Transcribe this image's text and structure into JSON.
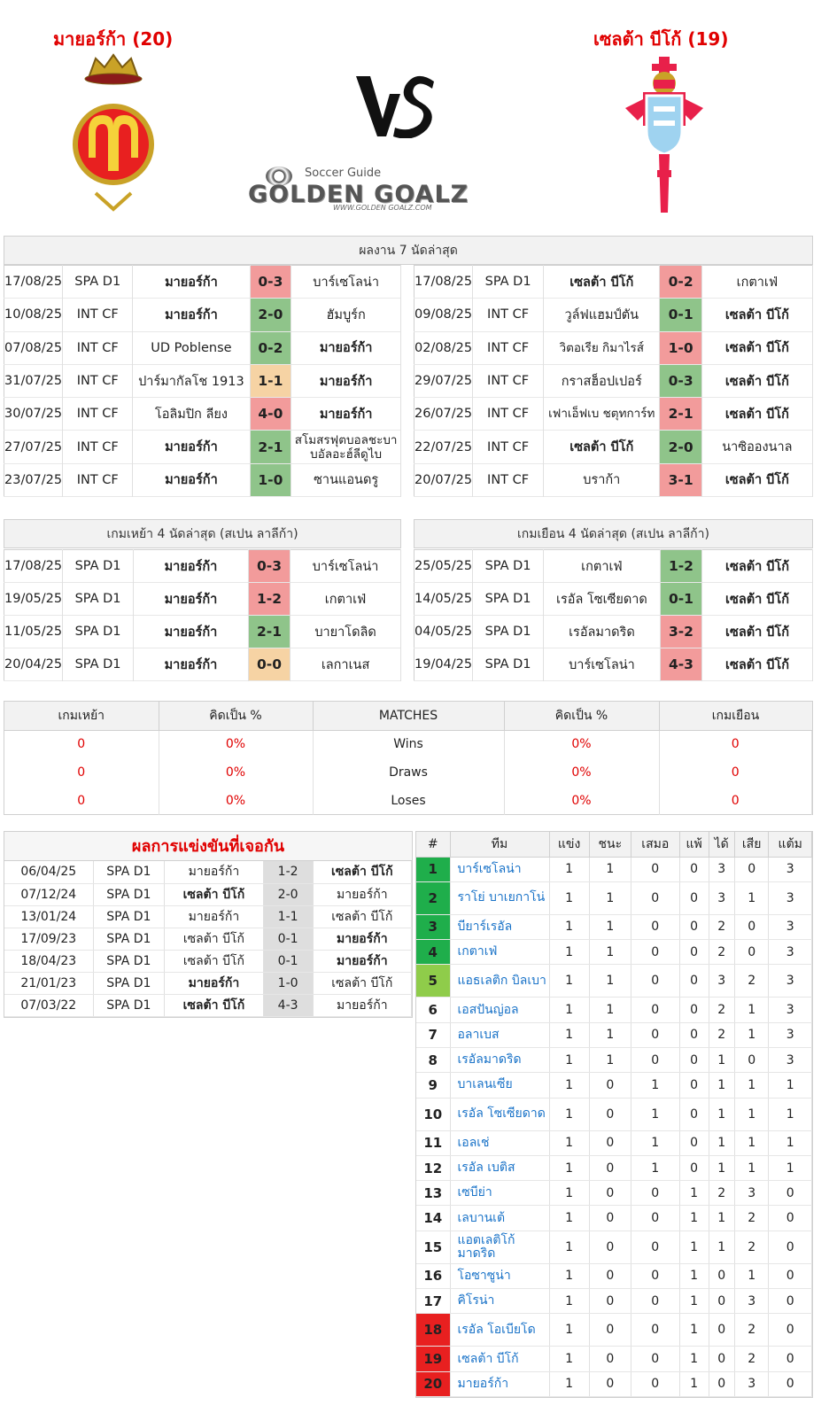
{
  "header": {
    "home_title": "มายอร์ก้า (20)",
    "away_title": "เซลต้า บีโก้ (19)",
    "vs": "VS",
    "brand_small": "Soccer Guide",
    "brand_big": "GOLDEN GOALZ",
    "brand_url": "WWW.GOLDEN GOALZ.COM"
  },
  "last7": {
    "title": "ผลงาน 7 นัดล่าสุด",
    "home": [
      {
        "date": "17/08/25",
        "comp": "SPA D1",
        "t1": "มายอร์ก้า",
        "score": "0-3",
        "t2": "บาร์เซโลน่า",
        "res": "L",
        "bold": 1
      },
      {
        "date": "10/08/25",
        "comp": "INT CF",
        "t1": "มายอร์ก้า",
        "score": "2-0",
        "t2": "ฮัมบูร์ก",
        "res": "W",
        "bold": 1
      },
      {
        "date": "07/08/25",
        "comp": "INT CF",
        "t1": "UD Poblense",
        "score": "0-2",
        "t2": "มายอร์ก้า",
        "res": "W",
        "bold": 2
      },
      {
        "date": "31/07/25",
        "comp": "INT CF",
        "t1": "ปาร์มากัลโช 1913",
        "score": "1-1",
        "t2": "มายอร์ก้า",
        "res": "D",
        "bold": 2
      },
      {
        "date": "30/07/25",
        "comp": "INT CF",
        "t1": "โอลิมปิก ลียง",
        "score": "4-0",
        "t2": "มายอร์ก้า",
        "res": "L",
        "bold": 2
      },
      {
        "date": "27/07/25",
        "comp": "INT CF",
        "t1": "มายอร์ก้า",
        "score": "2-1",
        "t2": "สโมสรฟุตบอลชะบาบอัลอะฮ์ลีดูไบ",
        "res": "W",
        "bold": 1
      },
      {
        "date": "23/07/25",
        "comp": "INT CF",
        "t1": "มายอร์ก้า",
        "score": "1-0",
        "t2": "ซานแอนดรู",
        "res": "W",
        "bold": 1
      }
    ],
    "away": [
      {
        "date": "17/08/25",
        "comp": "SPA D1",
        "t1": "เซลต้า บีโก้",
        "score": "0-2",
        "t2": "เกตาเฟ่",
        "res": "L",
        "bold": 1
      },
      {
        "date": "09/08/25",
        "comp": "INT CF",
        "t1": "วูล์ฟแฮมป์ตัน",
        "score": "0-1",
        "t2": "เซลต้า บีโก้",
        "res": "W",
        "bold": 2
      },
      {
        "date": "02/08/25",
        "comp": "INT CF",
        "t1": "วิตอเรีย กิมาไรส์",
        "score": "1-0",
        "t2": "เซลต้า บีโก้",
        "res": "L",
        "bold": 2
      },
      {
        "date": "29/07/25",
        "comp": "INT CF",
        "t1": "กราสฮ็อปเปอร์",
        "score": "0-3",
        "t2": "เซลต้า บีโก้",
        "res": "W",
        "bold": 2
      },
      {
        "date": "26/07/25",
        "comp": "INT CF",
        "t1": "เฟาเอ็ฟเบ ชตุทการ์ท",
        "score": "2-1",
        "t2": "เซลต้า บีโก้",
        "res": "L",
        "bold": 2
      },
      {
        "date": "22/07/25",
        "comp": "INT CF",
        "t1": "เซลต้า บีโก้",
        "score": "2-0",
        "t2": "นาซิอองนาล",
        "res": "W",
        "bold": 1
      },
      {
        "date": "20/07/25",
        "comp": "INT CF",
        "t1": "บราก้า",
        "score": "3-1",
        "t2": "เซลต้า บีโก้",
        "res": "L",
        "bold": 2
      }
    ]
  },
  "last4": {
    "home_title": "เกมเหย้า 4 นัดล่าสุด (สเปน ลาลีก้า)",
    "away_title": "เกมเยือน 4 นัดล่าสุด (สเปน ลาลีก้า)",
    "home": [
      {
        "date": "17/08/25",
        "comp": "SPA D1",
        "t1": "มายอร์ก้า",
        "score": "0-3",
        "t2": "บาร์เซโลน่า",
        "res": "L",
        "bold": 1
      },
      {
        "date": "19/05/25",
        "comp": "SPA D1",
        "t1": "มายอร์ก้า",
        "score": "1-2",
        "t2": "เกตาเฟ่",
        "res": "L",
        "bold": 1
      },
      {
        "date": "11/05/25",
        "comp": "SPA D1",
        "t1": "มายอร์ก้า",
        "score": "2-1",
        "t2": "บายาโดลิด",
        "res": "W",
        "bold": 1
      },
      {
        "date": "20/04/25",
        "comp": "SPA D1",
        "t1": "มายอร์ก้า",
        "score": "0-0",
        "t2": "เลกาเนส",
        "res": "D",
        "bold": 1
      }
    ],
    "away": [
      {
        "date": "25/05/25",
        "comp": "SPA D1",
        "t1": "เกตาเฟ่",
        "score": "1-2",
        "t2": "เซลต้า บีโก้",
        "res": "W",
        "bold": 2
      },
      {
        "date": "14/05/25",
        "comp": "SPA D1",
        "t1": "เรอัล โซเซียดาด",
        "score": "0-1",
        "t2": "เซลต้า บีโก้",
        "res": "W",
        "bold": 2
      },
      {
        "date": "04/05/25",
        "comp": "SPA D1",
        "t1": "เรอัลมาดริด",
        "score": "3-2",
        "t2": "เซลต้า บีโก้",
        "res": "L",
        "bold": 2
      },
      {
        "date": "19/04/25",
        "comp": "SPA D1",
        "t1": "บาร์เซโลน่า",
        "score": "4-3",
        "t2": "เซลต้า บีโก้",
        "res": "L",
        "bold": 2
      }
    ]
  },
  "summary": {
    "headers": [
      "เกมเหย้า",
      "คิดเป็น %",
      "MATCHES",
      "คิดเป็น %",
      "เกมเยือน"
    ],
    "rows": [
      {
        "h": "0",
        "hp": "0%",
        "label": "Wins",
        "ap": "0%",
        "a": "0"
      },
      {
        "h": "0",
        "hp": "0%",
        "label": "Draws",
        "ap": "0%",
        "a": "0"
      },
      {
        "h": "0",
        "hp": "0%",
        "label": "Loses",
        "ap": "0%",
        "a": "0"
      }
    ]
  },
  "h2h": {
    "title": "ผลการแข่งขันที่เจอกัน",
    "rows": [
      {
        "date": "06/04/25",
        "comp": "SPA D1",
        "t1": "มายอร์ก้า",
        "score": "1-2",
        "t2": "เซลต้า บีโก้",
        "bold": 2
      },
      {
        "date": "07/12/24",
        "comp": "SPA D1",
        "t1": "เซลต้า บีโก้",
        "score": "2-0",
        "t2": "มายอร์ก้า",
        "bold": 1
      },
      {
        "date": "13/01/24",
        "comp": "SPA D1",
        "t1": "มายอร์ก้า",
        "score": "1-1",
        "t2": "เซลต้า บีโก้",
        "bold": 0
      },
      {
        "date": "17/09/23",
        "comp": "SPA D1",
        "t1": "เซลต้า บีโก้",
        "score": "0-1",
        "t2": "มายอร์ก้า",
        "bold": 2
      },
      {
        "date": "18/04/23",
        "comp": "SPA D1",
        "t1": "เซลต้า บีโก้",
        "score": "0-1",
        "t2": "มายอร์ก้า",
        "bold": 2
      },
      {
        "date": "21/01/23",
        "comp": "SPA D1",
        "t1": "มายอร์ก้า",
        "score": "1-0",
        "t2": "เซลต้า บีโก้",
        "bold": 1
      },
      {
        "date": "07/03/22",
        "comp": "SPA D1",
        "t1": "เซลต้า บีโก้",
        "score": "4-3",
        "t2": "มายอร์ก้า",
        "bold": 1
      }
    ]
  },
  "standings": {
    "headers": [
      "#",
      "ทีม",
      "แข่ง",
      "ชนะ",
      "เสมอ",
      "แพ้",
      "ได้",
      "เสีย",
      "แต้ม"
    ],
    "rows": [
      {
        "rank": "1",
        "team": "บาร์เซโลน่า",
        "p": "1",
        "w": "1",
        "d": "0",
        "l": "0",
        "gf": "3",
        "ga": "0",
        "pts": "3",
        "zone": "g1"
      },
      {
        "rank": "2",
        "team": "ราโย่ บาเยกาโน่",
        "p": "1",
        "w": "1",
        "d": "0",
        "l": "0",
        "gf": "3",
        "ga": "1",
        "pts": "3",
        "zone": "g1"
      },
      {
        "rank": "3",
        "team": "บียาร์เรอัล",
        "p": "1",
        "w": "1",
        "d": "0",
        "l": "0",
        "gf": "2",
        "ga": "0",
        "pts": "3",
        "zone": "g1"
      },
      {
        "rank": "4",
        "team": "เกตาเฟ่",
        "p": "1",
        "w": "1",
        "d": "0",
        "l": "0",
        "gf": "2",
        "ga": "0",
        "pts": "3",
        "zone": "g1"
      },
      {
        "rank": "5",
        "team": "แอธเลติก บิลเบา",
        "p": "1",
        "w": "1",
        "d": "0",
        "l": "0",
        "gf": "3",
        "ga": "2",
        "pts": "3",
        "zone": "g2"
      },
      {
        "rank": "6",
        "team": "เอสปันญ่อล",
        "p": "1",
        "w": "1",
        "d": "0",
        "l": "0",
        "gf": "2",
        "ga": "1",
        "pts": "3",
        "zone": ""
      },
      {
        "rank": "7",
        "team": "อลาเบส",
        "p": "1",
        "w": "1",
        "d": "0",
        "l": "0",
        "gf": "2",
        "ga": "1",
        "pts": "3",
        "zone": ""
      },
      {
        "rank": "8",
        "team": "เรอัลมาดริด",
        "p": "1",
        "w": "1",
        "d": "0",
        "l": "0",
        "gf": "1",
        "ga": "0",
        "pts": "3",
        "zone": ""
      },
      {
        "rank": "9",
        "team": "บาเลนเซีย",
        "p": "1",
        "w": "0",
        "d": "1",
        "l": "0",
        "gf": "1",
        "ga": "1",
        "pts": "1",
        "zone": ""
      },
      {
        "rank": "10",
        "team": "เรอัล โซเซียดาด",
        "p": "1",
        "w": "0",
        "d": "1",
        "l": "0",
        "gf": "1",
        "ga": "1",
        "pts": "1",
        "zone": ""
      },
      {
        "rank": "11",
        "team": "เอลเช่",
        "p": "1",
        "w": "0",
        "d": "1",
        "l": "0",
        "gf": "1",
        "ga": "1",
        "pts": "1",
        "zone": ""
      },
      {
        "rank": "12",
        "team": "เรอัล เบติส",
        "p": "1",
        "w": "0",
        "d": "1",
        "l": "0",
        "gf": "1",
        "ga": "1",
        "pts": "1",
        "zone": ""
      },
      {
        "rank": "13",
        "team": "เซบีย่า",
        "p": "1",
        "w": "0",
        "d": "0",
        "l": "1",
        "gf": "2",
        "ga": "3",
        "pts": "0",
        "zone": ""
      },
      {
        "rank": "14",
        "team": "เลบานเต้",
        "p": "1",
        "w": "0",
        "d": "0",
        "l": "1",
        "gf": "1",
        "ga": "2",
        "pts": "0",
        "zone": ""
      },
      {
        "rank": "15",
        "team": "แอตเลติโก้ มาดริด",
        "p": "1",
        "w": "0",
        "d": "0",
        "l": "1",
        "gf": "1",
        "ga": "2",
        "pts": "0",
        "zone": ""
      },
      {
        "rank": "16",
        "team": "โอซาซูน่า",
        "p": "1",
        "w": "0",
        "d": "0",
        "l": "1",
        "gf": "0",
        "ga": "1",
        "pts": "0",
        "zone": ""
      },
      {
        "rank": "17",
        "team": "คิโรน่า",
        "p": "1",
        "w": "0",
        "d": "0",
        "l": "1",
        "gf": "0",
        "ga": "3",
        "pts": "0",
        "zone": ""
      },
      {
        "rank": "18",
        "team": "เรอัล โอเบียโด",
        "p": "1",
        "w": "0",
        "d": "0",
        "l": "1",
        "gf": "0",
        "ga": "2",
        "pts": "0",
        "zone": "rd"
      },
      {
        "rank": "19",
        "team": "เซลต้า บีโก้",
        "p": "1",
        "w": "0",
        "d": "0",
        "l": "1",
        "gf": "0",
        "ga": "2",
        "pts": "0",
        "zone": "rd"
      },
      {
        "rank": "20",
        "team": "มายอร์ก้า",
        "p": "1",
        "w": "0",
        "d": "0",
        "l": "1",
        "gf": "0",
        "ga": "3",
        "pts": "0",
        "zone": "rd"
      }
    ]
  }
}
